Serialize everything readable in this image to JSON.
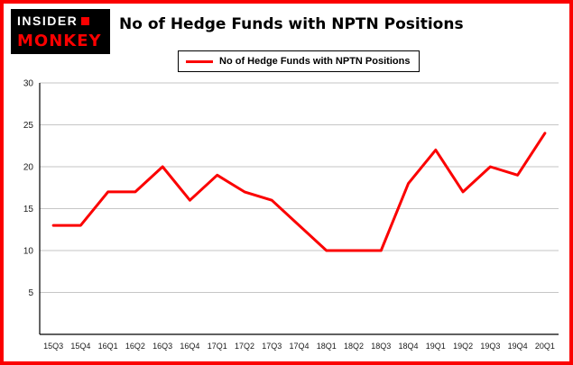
{
  "brand": {
    "line1": "INSIDER",
    "line2": "MONKEY"
  },
  "title": "No of Hedge Funds with NPTN Positions",
  "legend": {
    "label": "No of Hedge Funds with NPTN Positions"
  },
  "colors": {
    "line": "#fb0000",
    "frame": "#fb0000",
    "grid": "#c6c6c6",
    "axis": "#000000",
    "tick_text": "#1a1a1a"
  },
  "chart_data": {
    "type": "line",
    "categories": [
      "15Q3",
      "15Q4",
      "16Q1",
      "16Q2",
      "16Q3",
      "16Q4",
      "17Q1",
      "17Q2",
      "17Q3",
      "17Q4",
      "18Q1",
      "18Q2",
      "18Q3",
      "18Q4",
      "19Q1",
      "19Q2",
      "19Q3",
      "19Q4",
      "20Q1"
    ],
    "values": [
      13,
      13,
      17,
      17,
      20,
      16,
      19,
      17,
      16,
      13,
      10,
      10,
      10,
      18,
      22,
      17,
      20,
      19,
      24
    ],
    "title": "No of Hedge Funds with NPTN Positions",
    "xlabel": "",
    "ylabel": "",
    "ylim": [
      0,
      30
    ],
    "ytick_step": 5,
    "grid": true,
    "legend_position": "top-left"
  }
}
